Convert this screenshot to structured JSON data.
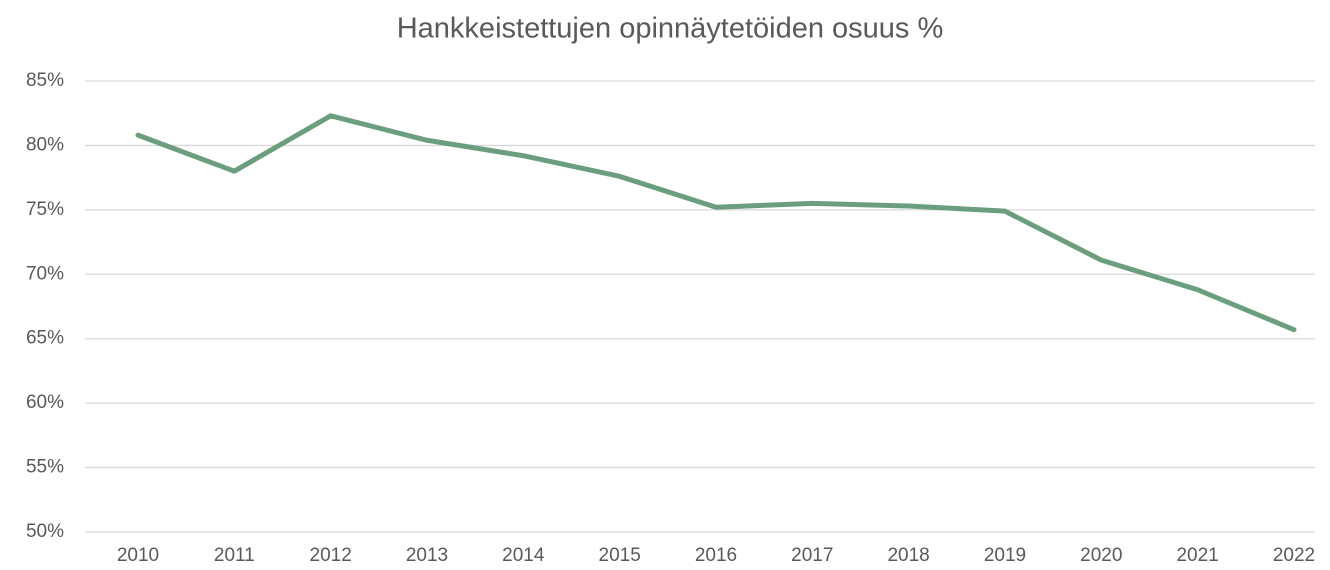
{
  "chart_data": {
    "type": "line",
    "title": "Hankkeistettujen opinnäytetöiden osuus %",
    "categories": [
      "2010",
      "2011",
      "2012",
      "2013",
      "2014",
      "2015",
      "2016",
      "2017",
      "2018",
      "2019",
      "2020",
      "2021",
      "2022"
    ],
    "values": [
      80.8,
      78.0,
      82.3,
      80.4,
      79.2,
      77.6,
      75.2,
      75.5,
      75.3,
      74.9,
      71.1,
      68.8,
      65.7
    ],
    "color": "#6b9e7f",
    "ylim": [
      50,
      85
    ],
    "yticks": [
      {
        "value": 50,
        "label": "50%"
      },
      {
        "value": 55,
        "label": "55%"
      },
      {
        "value": 60,
        "label": "60%"
      },
      {
        "value": 65,
        "label": "65%"
      },
      {
        "value": 70,
        "label": "70%"
      },
      {
        "value": 75,
        "label": "75%"
      },
      {
        "value": 80,
        "label": "80%"
      },
      {
        "value": 85,
        "label": "85%"
      }
    ],
    "grid": true
  }
}
